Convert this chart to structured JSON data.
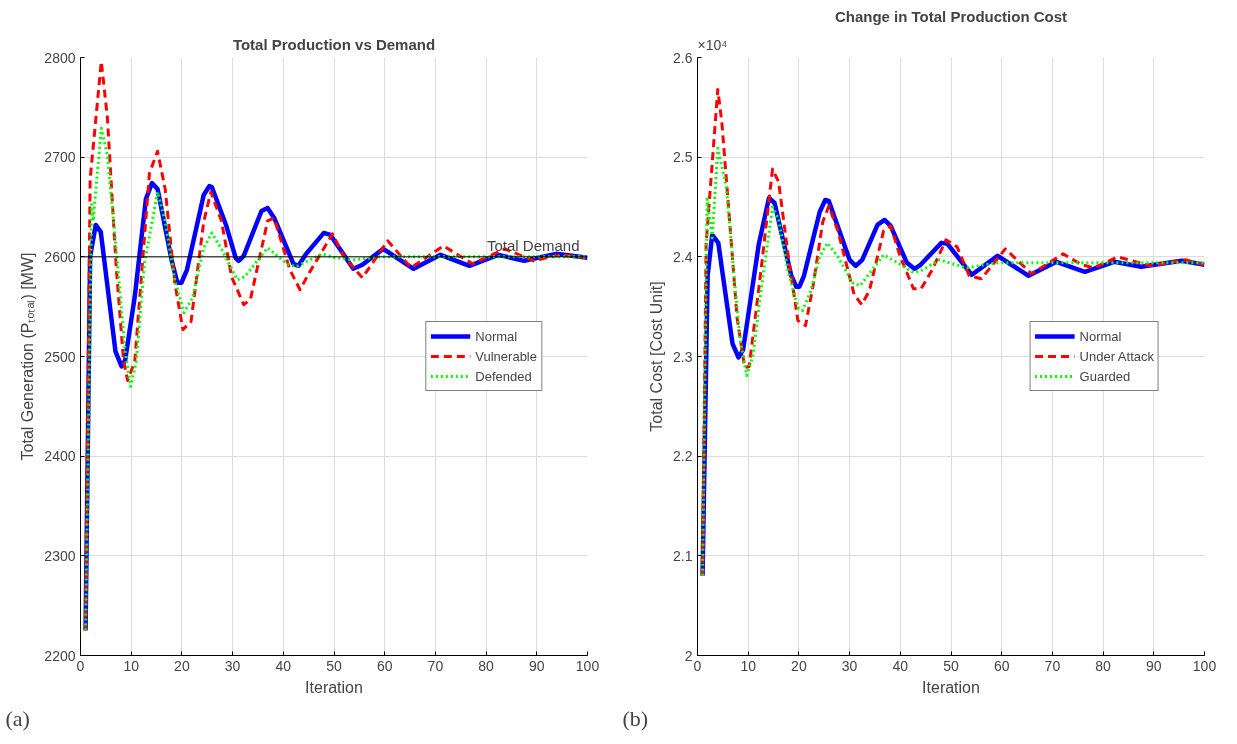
{
  "chart_data": [
    {
      "type": "line",
      "title": "Total Production vs Demand",
      "xlabel": "Iteration",
      "ylabel": "Total Generation (Pₜₒₜₐₗ) [MW]",
      "xlim": [
        0,
        100
      ],
      "ylim": [
        2200,
        2800
      ],
      "xticks": [
        0,
        10,
        20,
        30,
        40,
        50,
        60,
        70,
        80,
        90,
        100
      ],
      "yticks": [
        2200,
        2300,
        2400,
        2500,
        2600,
        2700,
        2800
      ],
      "grid": true,
      "legend": "right",
      "marker": "none",
      "ref_lines": [
        {
          "axis": "y",
          "value": 2600,
          "label": "Total Demand",
          "color": "#000000",
          "line_style": "solid"
        }
      ],
      "annotations": [
        "(a)"
      ],
      "series": [
        {
          "name": "Normal",
          "color": "#0000ff",
          "line_style": "solid",
          "x": [
            1,
            1.9,
            3,
            4,
            6.9,
            8.1,
            8.8,
            10.7,
            12.9,
            14.1,
            15.2,
            18,
            19.1,
            19.9,
            21,
            24.3,
            25.4,
            25.9,
            28.7,
            30.6,
            31.2,
            32.2,
            35.7,
            36.9,
            38.2,
            42,
            43,
            44.5,
            48,
            49.3,
            53.8,
            55.6,
            59.7,
            65.7,
            71,
            76.7,
            82.4,
            87.5,
            93.8,
            100
          ],
          "values": [
            2225,
            2600,
            2632,
            2625,
            2505,
            2490,
            2496,
            2560,
            2658,
            2674,
            2668,
            2596,
            2574,
            2574,
            2587,
            2662,
            2671,
            2670,
            2632,
            2599,
            2596,
            2601,
            2646,
            2649,
            2639,
            2593,
            2591,
            2603,
            2624,
            2622,
            2588,
            2592,
            2608,
            2588,
            2602,
            2591,
            2602,
            2596,
            2603,
            2599
          ]
        },
        {
          "name": "Vulnerable",
          "color": "#ff0000",
          "line_style": "dashed",
          "x": [
            1,
            1.9,
            4.1,
            5.3,
            7,
            8.5,
            9.3,
            10.7,
            13.6,
            15.2,
            16.7,
            18.6,
            20.2,
            21.8,
            24.3,
            25.7,
            27.8,
            29.8,
            32.2,
            33.5,
            36.9,
            38.2,
            41.3,
            43.3,
            45,
            49.7,
            52,
            55.6,
            60.6,
            65.2,
            71.6,
            77.3,
            83.7,
            89.4,
            94.7,
            100
          ],
          "values": [
            2225,
            2678,
            2796,
            2740,
            2593,
            2495,
            2476,
            2495,
            2684,
            2706,
            2668,
            2574,
            2527,
            2535,
            2635,
            2665,
            2636,
            2580,
            2552,
            2557,
            2636,
            2639,
            2587,
            2567,
            2583,
            2623,
            2600,
            2579,
            2616,
            2589,
            2611,
            2593,
            2608,
            2596,
            2602,
            2599
          ]
        },
        {
          "name": "Defended",
          "color": "#00ff00",
          "line_style": "dotted",
          "x": [
            1,
            2.2,
            2.5,
            4.1,
            5.3,
            7.3,
            8.8,
            9.9,
            11,
            12.6,
            15.2,
            16.7,
            18.6,
            20.4,
            22.1,
            24.3,
            25.9,
            28,
            30.9,
            32.4,
            36.9,
            40.7,
            42.5,
            47.7,
            50.2,
            54,
            59,
            70,
            80,
            90,
            100
          ],
          "values": [
            2225,
            2655,
            2636,
            2729,
            2702,
            2593,
            2505,
            2470,
            2495,
            2593,
            2665,
            2636,
            2577,
            2544,
            2559,
            2609,
            2624,
            2606,
            2577,
            2580,
            2609,
            2593,
            2590,
            2603,
            2599,
            2597,
            2600,
            2600,
            2600,
            2600,
            2600
          ]
        }
      ]
    },
    {
      "type": "line",
      "title": "Change in Total Production Cost",
      "xlabel": "Iteration",
      "ylabel": "Total Cost [Cost Unit]",
      "xlim": [
        0,
        100
      ],
      "ylim": [
        2,
        2.6
      ],
      "xticks": [
        0,
        10,
        20,
        30,
        40,
        50,
        60,
        70,
        80,
        90,
        100
      ],
      "yticks": [
        2,
        2.1,
        2.2,
        2.3,
        2.4,
        2.5,
        2.6
      ],
      "grid": true,
      "legend": "right",
      "marker": "none",
      "annotations": [
        "×10⁴",
        "(b)"
      ],
      "series": [
        {
          "name": "Normal",
          "color": "#0000ff",
          "line_style": "solid",
          "x": [
            1,
            2,
            2.9,
            4.1,
            6.9,
            8.1,
            9,
            12.1,
            14.1,
            15.2,
            18.5,
            19.5,
            20.1,
            21,
            24.1,
            25.2,
            25.9,
            30,
            31.2,
            32.5,
            35.5,
            36.9,
            38.1,
            41.3,
            42.8,
            44,
            48.1,
            49.3,
            54.1,
            59.2,
            65.3,
            70.8,
            76.4,
            82.2,
            87.5,
            95.5,
            100
          ],
          "values": [
            2.08,
            2.381,
            2.422,
            2.414,
            2.313,
            2.299,
            2.307,
            2.413,
            2.459,
            2.454,
            2.381,
            2.37,
            2.37,
            2.381,
            2.445,
            2.457,
            2.456,
            2.397,
            2.391,
            2.397,
            2.432,
            2.437,
            2.431,
            2.394,
            2.388,
            2.392,
            2.414,
            2.413,
            2.382,
            2.401,
            2.381,
            2.395,
            2.385,
            2.395,
            2.39,
            2.396,
            2.392
          ]
        },
        {
          "name": "Under Attack",
          "color": "#ff0000",
          "line_style": "dashed",
          "x": [
            1,
            1.7,
            4,
            4.8,
            6.2,
            7.8,
            9.3,
            10.2,
            12.4,
            14.8,
            16,
            18,
            19.8,
            21.3,
            22.8,
            24.7,
            25.9,
            27.7,
            30.9,
            32.4,
            33.9,
            36.7,
            38.1,
            40,
            42.6,
            44.1,
            46.3,
            49,
            51.2,
            53.6,
            56,
            60.7,
            65.9,
            72.1,
            75.8,
            78.2,
            82.9,
            89.4,
            96.2,
            100
          ],
          "values": [
            2.08,
            2.413,
            2.568,
            2.535,
            2.445,
            2.339,
            2.289,
            2.29,
            2.381,
            2.488,
            2.475,
            2.397,
            2.336,
            2.331,
            2.371,
            2.435,
            2.451,
            2.426,
            2.362,
            2.352,
            2.366,
            2.426,
            2.431,
            2.4,
            2.368,
            2.368,
            2.387,
            2.417,
            2.41,
            2.381,
            2.378,
            2.408,
            2.383,
            2.403,
            2.392,
            2.389,
            2.4,
            2.391,
            2.397,
            2.392
          ]
        },
        {
          "name": "Guarded",
          "color": "#00ff00",
          "line_style": "dotted",
          "x": [
            1,
            1.9,
            2.9,
            4,
            5.7,
            7.2,
            8.4,
            9.7,
            10.9,
            12.4,
            14.8,
            16,
            17.8,
            19.8,
            20.7,
            22.3,
            24.1,
            25.6,
            27.7,
            30.6,
            32.1,
            36.7,
            39.5,
            42.6,
            44.4,
            47.7,
            53,
            59.2,
            71.4,
            85,
            100
          ],
          "values": [
            2.08,
            2.458,
            2.419,
            2.509,
            2.47,
            2.381,
            2.317,
            2.281,
            2.3,
            2.361,
            2.45,
            2.438,
            2.387,
            2.349,
            2.346,
            2.365,
            2.4,
            2.414,
            2.4,
            2.374,
            2.371,
            2.402,
            2.394,
            2.384,
            2.387,
            2.397,
            2.389,
            2.394,
            2.394,
            2.394,
            2.394
          ]
        }
      ]
    }
  ]
}
